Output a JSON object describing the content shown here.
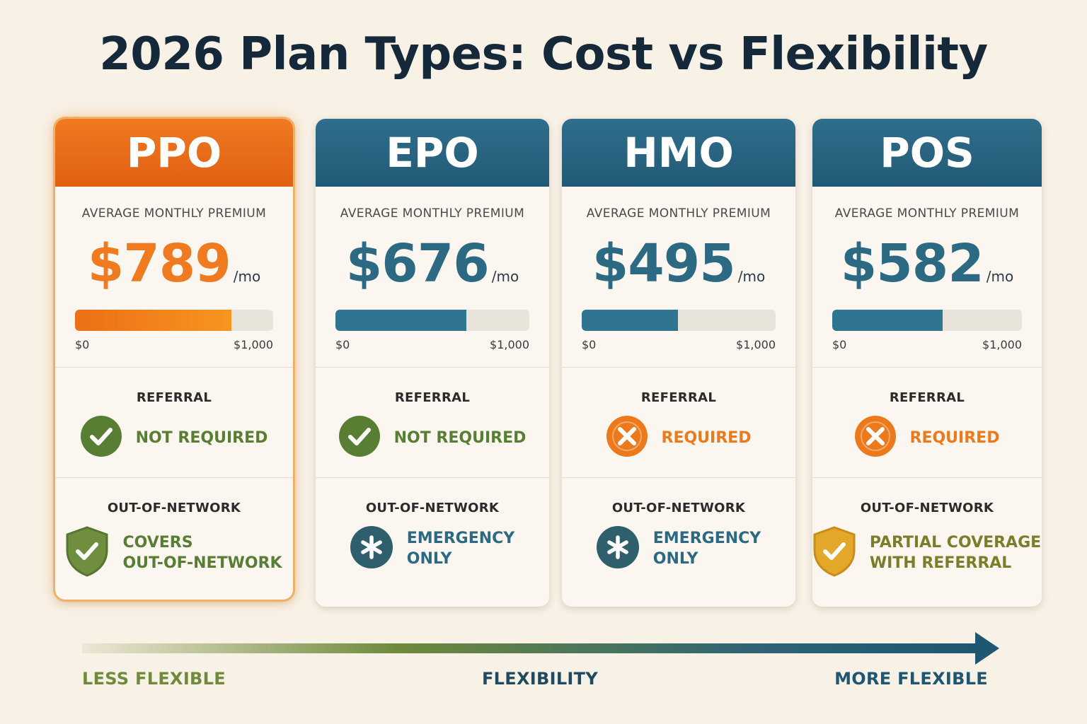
{
  "title": "2026 Plan Types: Cost vs Flexibility",
  "premium_label": "AVERAGE MONTHLY PREMIUM",
  "per_month": "/mo",
  "bar_min_label": "$0",
  "bar_max_label": "$1,000",
  "bar_scale_max": 1000,
  "referral_label": "REFERRAL",
  "network_label": "OUT-OF-NETWORK",
  "colors": {
    "featured": "#ef7a1f",
    "standard": "#2c6a84",
    "yes_green": "#587e34",
    "no_orange": "#ec7a1c",
    "shield_gold": "#e3a72a"
  },
  "plans": [
    {
      "name": "PPO",
      "featured": true,
      "price": "$789",
      "premium": 789,
      "referral_icon": "check-icon",
      "referral_text": "NOT REQUIRED",
      "network_icon": "shield-check-icon",
      "network_line1": "COVERS",
      "network_line2": "OUT-OF-NETWORK"
    },
    {
      "name": "EPO",
      "featured": false,
      "price": "$676",
      "premium": 676,
      "referral_icon": "check-icon",
      "referral_text": "NOT REQUIRED",
      "network_icon": "asterisk-icon",
      "network_line1": "EMERGENCY",
      "network_line2": "ONLY"
    },
    {
      "name": "HMO",
      "featured": false,
      "price": "$495",
      "premium": 495,
      "referral_icon": "x-icon",
      "referral_text": "REQUIRED",
      "network_icon": "asterisk-icon",
      "network_line1": "EMERGENCY",
      "network_line2": "ONLY"
    },
    {
      "name": "POS",
      "featured": false,
      "price": "$582",
      "premium": 582,
      "referral_icon": "x-icon",
      "referral_text": "REQUIRED",
      "network_icon": "shield-check-icon",
      "network_line1": "PARTIAL COVERAGE",
      "network_line2": "WITH REFERRAL"
    }
  ],
  "flexibility": {
    "left": "LESS FLEXIBLE",
    "center": "FLEXIBILITY",
    "right": "MORE FLEXIBLE"
  }
}
